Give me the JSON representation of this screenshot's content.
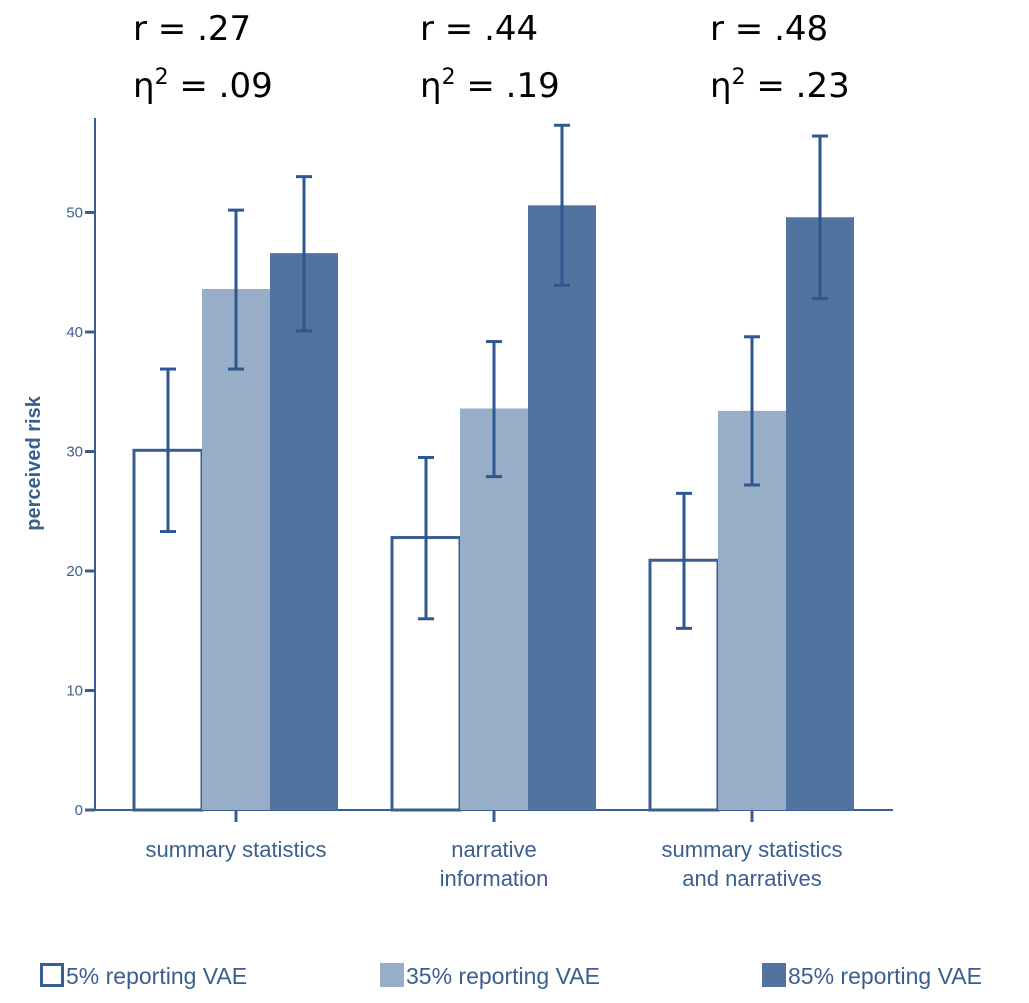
{
  "chart_data": {
    "type": "bar",
    "ylabel": "perceived risk",
    "xlabel": "",
    "ylim": [
      0,
      58
    ],
    "yticks": [
      "0",
      "10",
      "20",
      "30",
      "40",
      "50"
    ],
    "grid": false,
    "legend_position": "bottom",
    "categories": [
      [
        "summary statistics"
      ],
      [
        "narrative",
        "information"
      ],
      [
        "summary statistics",
        "and narratives"
      ]
    ],
    "series": [
      {
        "name": "5% reporting VAE",
        "values": [
          30.1,
          22.8,
          20.9
        ],
        "error_low": [
          23.3,
          16.0,
          15.2
        ],
        "error_high": [
          36.9,
          29.5,
          26.5
        ]
      },
      {
        "name": "35% reporting VAE",
        "values": [
          43.6,
          33.6,
          33.4
        ],
        "error_low": [
          36.9,
          27.9,
          27.2
        ],
        "error_high": [
          50.2,
          39.2,
          39.6
        ]
      },
      {
        "name": "85% reporting VAE",
        "values": [
          46.6,
          50.6,
          49.6
        ],
        "error_low": [
          40.1,
          43.9,
          42.8
        ],
        "error_high": [
          53.0,
          57.3,
          56.4
        ]
      }
    ],
    "annotations": [
      {
        "r": "r = .27",
        "eta": ".09"
      },
      {
        "r": "r = .44",
        "eta": ".19"
      },
      {
        "r": "r = .48",
        "eta": ".23"
      }
    ],
    "eta_prefix": "η",
    "eta_sup": "2",
    "eta_suffix": " = ",
    "colors": {
      "axis": "#3a5f8f",
      "bar_5": "#ffffff",
      "bar_5_stroke": "#3a5f8f",
      "bar_35": "#98aec8",
      "bar_85": "#50739f",
      "error": "#2e5790"
    }
  }
}
